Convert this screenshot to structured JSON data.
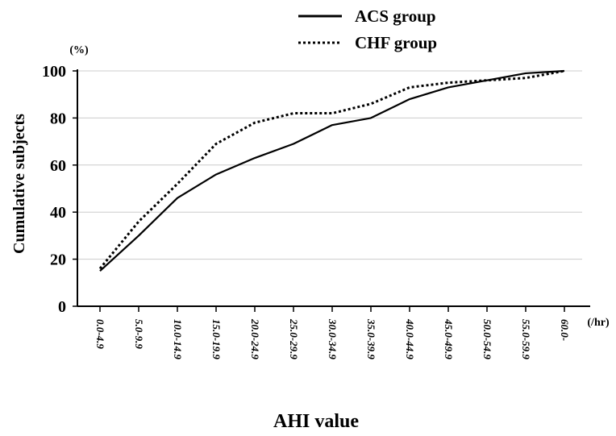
{
  "chart_data": {
    "type": "line",
    "xlabel": "AHI value",
    "ylabel": "Cumulative subjects",
    "y_unit": "(%)",
    "x_unit": "(/hr)",
    "ylim": [
      0,
      100
    ],
    "yticks": [
      0,
      20,
      40,
      60,
      80,
      100
    ],
    "grid": "horizontal",
    "legend_position": "top-right",
    "categories": [
      "0.0-4.9",
      "5.0-9.9",
      "10.0-14.9",
      "15.0-19.9",
      "20.0-24.9",
      "25.0-29.9",
      "30.0-34.9",
      "35.0-39.9",
      "40.0-44.9",
      "45.0-49.9",
      "50.0-54.9",
      "55.0-59.9",
      "60.0-"
    ],
    "series": [
      {
        "name": "ACS group",
        "style": "solid",
        "color": "#000000",
        "values": [
          15,
          30,
          46,
          56,
          63,
          69,
          77,
          80,
          88,
          93,
          96,
          99,
          100
        ]
      },
      {
        "name": "CHF group",
        "style": "dotted",
        "color": "#000000",
        "values": [
          16,
          36,
          52,
          69,
          78,
          82,
          82,
          86,
          93,
          95,
          96,
          97,
          100
        ]
      }
    ]
  }
}
